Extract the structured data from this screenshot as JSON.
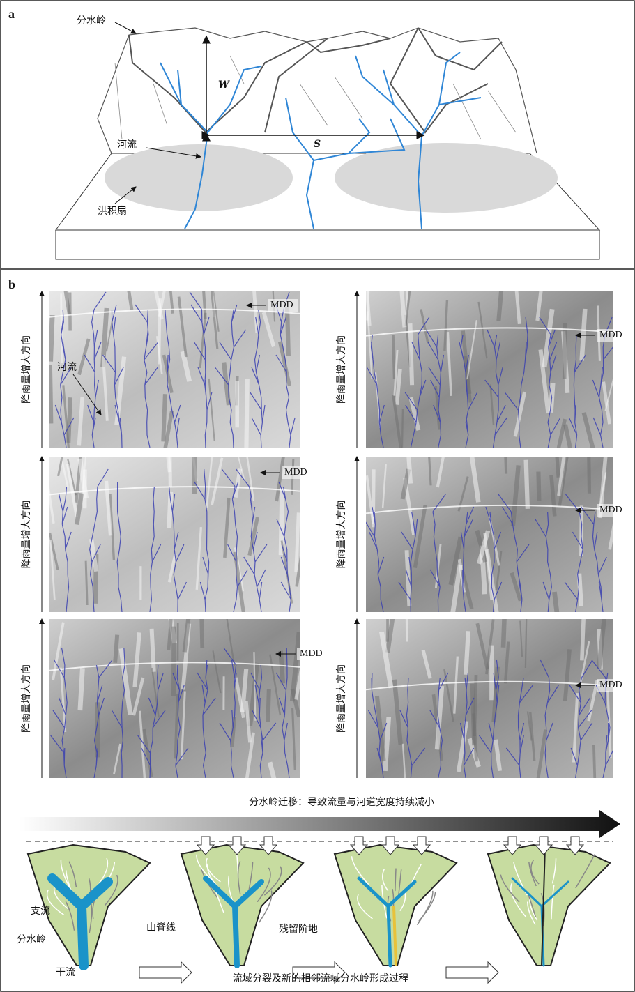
{
  "panel_a": {
    "label": "a",
    "divide": "分水岭",
    "w": "W",
    "river": "河流",
    "s": "S",
    "fan": "洪积扇"
  },
  "panel_b": {
    "label": "b",
    "maps": [
      {
        "axis_label": "降雨量增大方向",
        "mdd": "MDD",
        "river": "河流"
      },
      {
        "axis_label": "降雨量增大方向",
        "mdd": "MDD"
      },
      {
        "axis_label": "降雨量增大方向",
        "mdd": "MDD"
      },
      {
        "axis_label": "降雨量增大方向",
        "mdd": "MDD"
      },
      {
        "axis_label": "降雨量增大方向",
        "mdd": "MDD"
      },
      {
        "axis_label": "降雨量增大方向",
        "mdd": "MDD"
      }
    ],
    "migration_title": "分水岭迁移：导致流量与河道宽度持续减小",
    "tributary": "支流",
    "divide": "分水岭",
    "ridge": "山脊线",
    "trunk": "干流",
    "terrace": "残留阶地",
    "caption": "流域分裂及新的相邻流域分水岭形成过程"
  }
}
